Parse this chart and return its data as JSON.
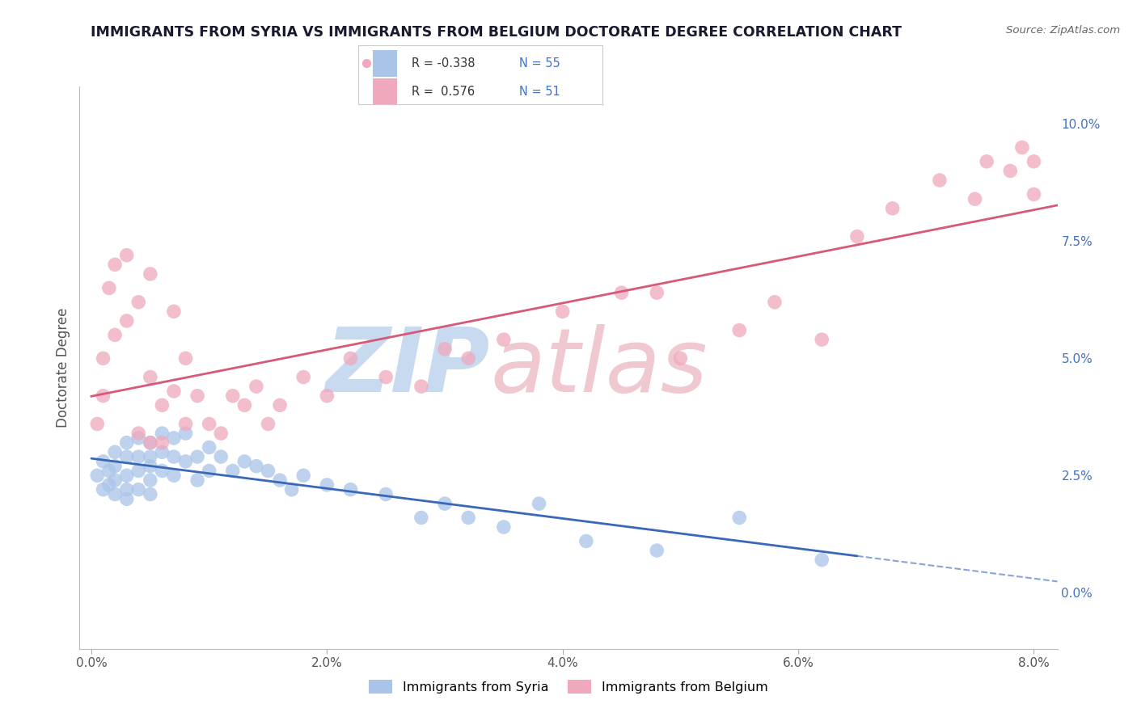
{
  "title": "IMMIGRANTS FROM SYRIA VS IMMIGRANTS FROM BELGIUM DOCTORATE DEGREE CORRELATION CHART",
  "source": "Source: ZipAtlas.com",
  "ylabel": "Doctorate Degree",
  "xlim": [
    -0.001,
    0.082
  ],
  "ylim": [
    -0.012,
    0.108
  ],
  "xticks": [
    0.0,
    0.02,
    0.04,
    0.06,
    0.08
  ],
  "xtick_labels": [
    "0.0%",
    "2.0%",
    "4.0%",
    "6.0%",
    "8.0%"
  ],
  "yticks": [
    0.0,
    0.025,
    0.05,
    0.075,
    0.1
  ],
  "ytick_labels": [
    "0.0%",
    "2.5%",
    "5.0%",
    "7.5%",
    "10.0%"
  ],
  "syria_color": "#aac4e8",
  "belgium_color": "#f0a8bc",
  "syria_line_color": "#3a68b8",
  "belgium_line_color": "#d85878",
  "syria_R": -0.338,
  "syria_N": 55,
  "belgium_R": 0.576,
  "belgium_N": 51,
  "background_color": "#ffffff",
  "grid_color": "#cccccc",
  "title_color": "#1a1a2e",
  "syria_scatter_x": [
    0.0005,
    0.001,
    0.001,
    0.0015,
    0.0015,
    0.002,
    0.002,
    0.002,
    0.002,
    0.003,
    0.003,
    0.003,
    0.003,
    0.003,
    0.004,
    0.004,
    0.004,
    0.004,
    0.005,
    0.005,
    0.005,
    0.005,
    0.005,
    0.006,
    0.006,
    0.006,
    0.007,
    0.007,
    0.007,
    0.008,
    0.008,
    0.009,
    0.009,
    0.01,
    0.01,
    0.011,
    0.012,
    0.013,
    0.014,
    0.015,
    0.016,
    0.017,
    0.018,
    0.02,
    0.022,
    0.025,
    0.028,
    0.03,
    0.032,
    0.035,
    0.038,
    0.042,
    0.048,
    0.055,
    0.062
  ],
  "syria_scatter_y": [
    0.025,
    0.028,
    0.022,
    0.026,
    0.023,
    0.03,
    0.027,
    0.024,
    0.021,
    0.032,
    0.029,
    0.025,
    0.022,
    0.02,
    0.033,
    0.029,
    0.026,
    0.022,
    0.032,
    0.029,
    0.027,
    0.024,
    0.021,
    0.034,
    0.03,
    0.026,
    0.033,
    0.029,
    0.025,
    0.034,
    0.028,
    0.029,
    0.024,
    0.031,
    0.026,
    0.029,
    0.026,
    0.028,
    0.027,
    0.026,
    0.024,
    0.022,
    0.025,
    0.023,
    0.022,
    0.021,
    0.016,
    0.019,
    0.016,
    0.014,
    0.019,
    0.011,
    0.009,
    0.016,
    0.007
  ],
  "belgium_scatter_x": [
    0.0005,
    0.001,
    0.001,
    0.0015,
    0.002,
    0.002,
    0.003,
    0.003,
    0.004,
    0.004,
    0.005,
    0.005,
    0.005,
    0.006,
    0.006,
    0.007,
    0.007,
    0.008,
    0.008,
    0.009,
    0.01,
    0.011,
    0.012,
    0.013,
    0.014,
    0.015,
    0.016,
    0.018,
    0.02,
    0.022,
    0.025,
    0.028,
    0.03,
    0.032,
    0.035,
    0.04,
    0.045,
    0.048,
    0.05,
    0.055,
    0.058,
    0.062,
    0.065,
    0.068,
    0.072,
    0.075,
    0.076,
    0.078,
    0.079,
    0.08,
    0.08
  ],
  "belgium_scatter_y": [
    0.036,
    0.05,
    0.042,
    0.065,
    0.055,
    0.07,
    0.058,
    0.072,
    0.062,
    0.034,
    0.046,
    0.032,
    0.068,
    0.04,
    0.032,
    0.043,
    0.06,
    0.036,
    0.05,
    0.042,
    0.036,
    0.034,
    0.042,
    0.04,
    0.044,
    0.036,
    0.04,
    0.046,
    0.042,
    0.05,
    0.046,
    0.044,
    0.052,
    0.05,
    0.054,
    0.06,
    0.064,
    0.064,
    0.05,
    0.056,
    0.062,
    0.054,
    0.076,
    0.082,
    0.088,
    0.084,
    0.092,
    0.09,
    0.095,
    0.085,
    0.092
  ],
  "watermark_zip_color": "#c8daf0",
  "watermark_atlas_color": "#f0c8d0"
}
